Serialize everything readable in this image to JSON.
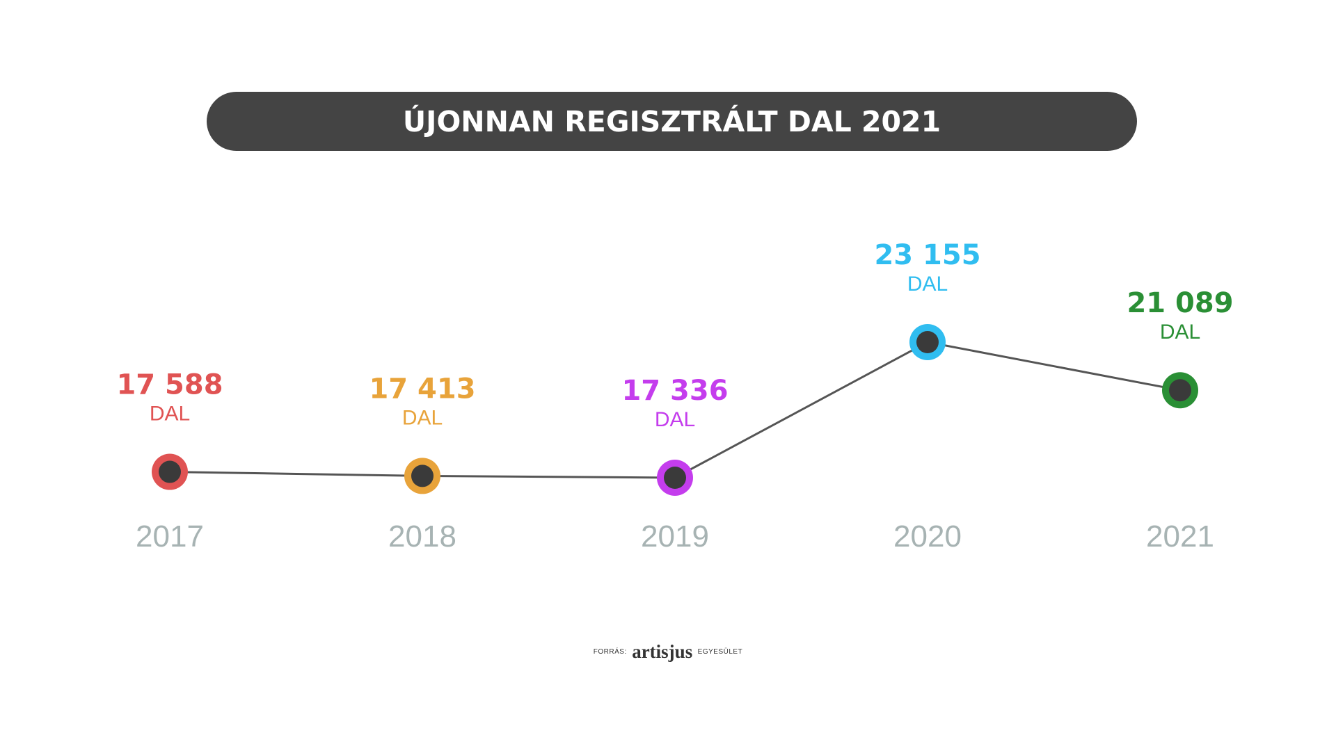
{
  "title": "ÚJONNAN REGISZTRÁLT DAL 2021",
  "source": {
    "prefix": "FORRÁS:",
    "logo": "artisjus",
    "suffix": "EGYESÜLET"
  },
  "colors": {
    "title_bar": "#444444",
    "line": "#555555",
    "marker_inner": "#3a3a3a",
    "year_label": "#a7b3b3"
  },
  "chart_data": {
    "type": "line",
    "title": "ÚJONNAN REGISZTRÁLT DAL 2021",
    "xlabel": "",
    "ylabel": "",
    "grid": false,
    "categories": [
      "2017",
      "2018",
      "2019",
      "2020",
      "2021"
    ],
    "values": [
      17588,
      17413,
      17336,
      23155,
      21089
    ],
    "value_labels": [
      "17 588",
      "17 413",
      "17 336",
      "23 155",
      "21 089"
    ],
    "unit_label": "DAL",
    "point_colors": [
      "#e05353",
      "#e8a33a",
      "#c43ded",
      "#30bdf0",
      "#2a8f35"
    ],
    "ylim": [
      17336,
      23155
    ]
  }
}
